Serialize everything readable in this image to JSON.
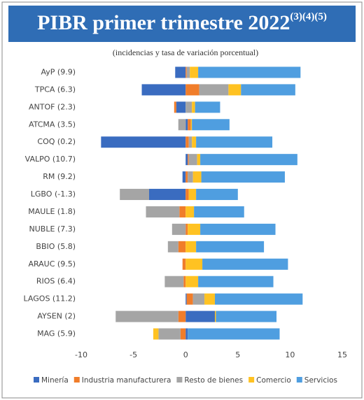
{
  "chart_data": {
    "type": "bar",
    "orientation": "horizontal",
    "stacked": true,
    "title": "PIBR primer trimestre 2022",
    "title_superscript": "(3)(4)(5)",
    "subtitle": "(incidencias y tasa de variación porcentual)",
    "categories": [
      "AyP (9.9)",
      "TPCA (6.3)",
      "ANTOF (2.3)",
      "ATCMA (3.5)",
      "COQ (0.2)",
      "VALPO (10.7)",
      "RM (9.2)",
      "LGBO (-1.3)",
      "MAULE (1.8)",
      "NUBLE (7.3)",
      "BBIO (5.8)",
      "ARAUC (9.5)",
      "RIOS (6.4)",
      "LAGOS (11.2)",
      "AYSEN (2)",
      "MAG (5.9)"
    ],
    "series": [
      {
        "name": "Minería",
        "color": "#3a6cc0",
        "values": [
          -1.0,
          -4.2,
          -0.9,
          0.2,
          -8.1,
          0.2,
          -0.3,
          -3.5,
          0,
          0,
          0,
          0,
          0,
          0.1,
          2.8,
          0.2
        ]
      },
      {
        "name": "Industria manufacturera",
        "color": "#f07d2a",
        "values": [
          0.1,
          1.3,
          -0.2,
          0.3,
          0.3,
          0.1,
          0.2,
          0.3,
          -0.6,
          0.2,
          -0.7,
          -0.3,
          -0.2,
          0.6,
          -0.7,
          -0.5
        ]
      },
      {
        "name": "Resto de bienes",
        "color": "#a5a5a5",
        "values": [
          0.3,
          2.8,
          0.6,
          -0.7,
          0.3,
          0.8,
          0.5,
          -2.8,
          -3.2,
          -1.3,
          -1.0,
          0,
          -1.8,
          1.1,
          -6.0,
          -2.1
        ]
      },
      {
        "name": "Comercio",
        "color": "#ffc222",
        "values": [
          0.8,
          1.2,
          0.3,
          0.1,
          0.4,
          0.3,
          0.8,
          0.7,
          0.8,
          1.2,
          1.0,
          1.6,
          1.2,
          1.0,
          0.1,
          -0.5
        ]
      },
      {
        "name": "Servicios",
        "color": "#4f9ee0",
        "values": [
          9.8,
          5.2,
          2.4,
          3.6,
          7.3,
          9.3,
          8.0,
          4.0,
          4.8,
          7.2,
          6.5,
          8.2,
          7.2,
          8.4,
          5.8,
          8.8
        ]
      }
    ],
    "xlim": [
      -10,
      15
    ],
    "xticks": [
      -10,
      -5,
      0,
      5,
      10,
      15
    ]
  }
}
